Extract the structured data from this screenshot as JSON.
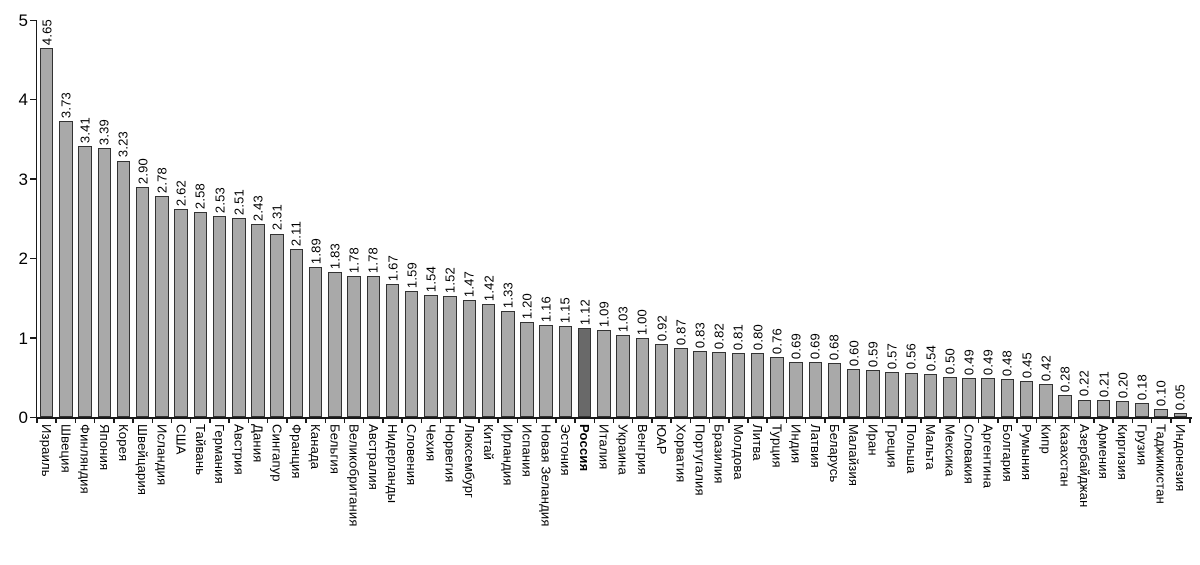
{
  "chart_data": {
    "type": "bar",
    "title": "",
    "xlabel": "",
    "ylabel": "",
    "ylim": [
      0,
      5
    ],
    "yticks": [
      0,
      1,
      2,
      3,
      4,
      5
    ],
    "grid": false,
    "legend": false,
    "value_label_decimals": 2,
    "highlight_category": "Россия",
    "categories": [
      "Израиль",
      "Швеция",
      "Финляндия",
      "Япония",
      "Корея",
      "Швейцария",
      "Исландия",
      "США",
      "Тайвань",
      "Германия",
      "Австрия",
      "Дания",
      "Сингапур",
      "Франция",
      "Канада",
      "Бельгия",
      "Великобритания",
      "Австралия",
      "Нидерланды",
      "Словения",
      "Чехия",
      "Норвегия",
      "Люксембург",
      "Китай",
      "Ирландия",
      "Испания",
      "Новая Зеландия",
      "Эстония",
      "Россия",
      "Италия",
      "Украина",
      "Венгрия",
      "ЮАР",
      "Хорватия",
      "Португалия",
      "Бразилия",
      "Молдова",
      "Литва",
      "Турция",
      "Индия",
      "Латвия",
      "Беларусь",
      "Малайзия",
      "Иран",
      "Греция",
      "Польша",
      "Мальта",
      "Мексика",
      "Словакия",
      "Аргентина",
      "Болгария",
      "Румыния",
      "Кипр",
      "Казахстан",
      "Азербайджан",
      "Армения",
      "Киргизия",
      "Грузия",
      "Таджикистан",
      "Индонезия"
    ],
    "values": [
      4.65,
      3.73,
      3.41,
      3.39,
      3.23,
      2.9,
      2.78,
      2.62,
      2.58,
      2.53,
      2.51,
      2.43,
      2.31,
      2.11,
      1.89,
      1.83,
      1.78,
      1.78,
      1.67,
      1.59,
      1.54,
      1.52,
      1.47,
      1.42,
      1.33,
      1.2,
      1.16,
      1.15,
      1.12,
      1.09,
      1.03,
      1.0,
      0.92,
      0.87,
      0.83,
      0.82,
      0.81,
      0.8,
      0.76,
      0.69,
      0.69,
      0.68,
      0.6,
      0.59,
      0.57,
      0.56,
      0.54,
      0.5,
      0.49,
      0.49,
      0.48,
      0.45,
      0.42,
      0.28,
      0.22,
      0.21,
      0.2,
      0.18,
      0.1,
      0.05
    ],
    "colors": {
      "bar": "#a9a9a9",
      "bar_highlight": "#696969",
      "bar_border": "#333333",
      "axis": "#1a1a1a",
      "text": "#000000",
      "background": "#ffffff"
    }
  }
}
